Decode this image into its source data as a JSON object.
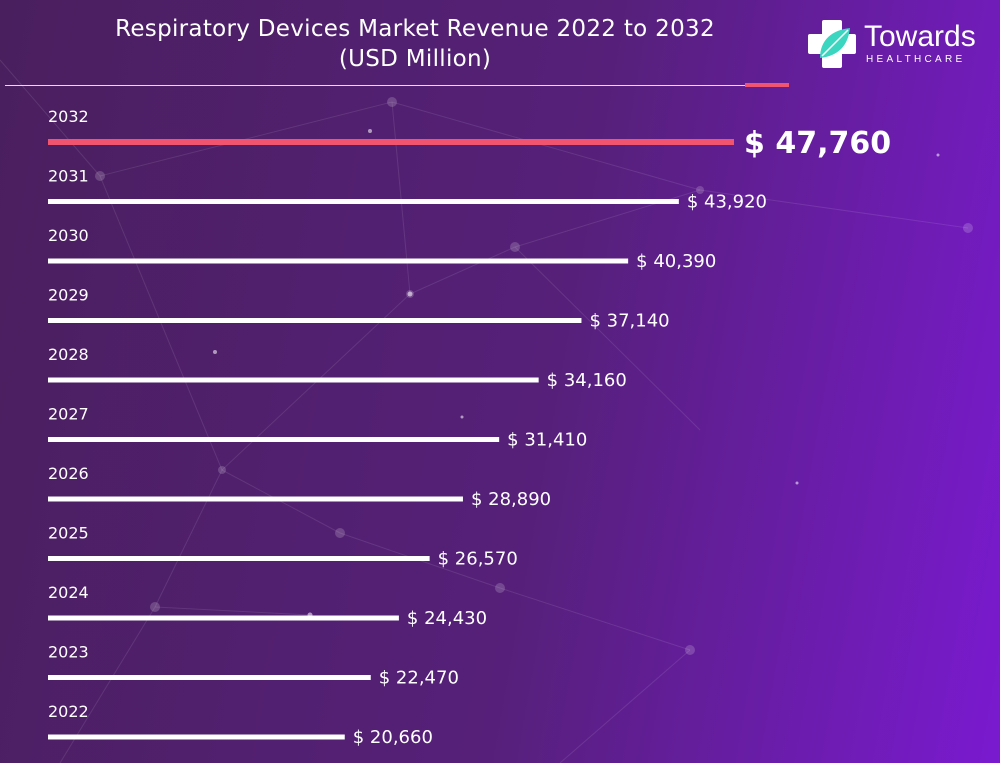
{
  "header": {
    "title_line1": "Respiratory Devices Market Revenue 2022 to 2032",
    "title_line2": "(USD Million)"
  },
  "logo": {
    "name": "Towards",
    "sub": "HEALTHCARE"
  },
  "colors": {
    "background_left": "#4a1f5e",
    "background_right": "#7a1ad0",
    "bar_default": "#ffffff",
    "bar_highlight": "#f0546e",
    "logo_leaf": "#3ad6c0"
  },
  "chart_data": {
    "type": "bar",
    "orientation": "horizontal",
    "categories": [
      "2032",
      "2031",
      "2030",
      "2029",
      "2028",
      "2027",
      "2026",
      "2025",
      "2024",
      "2023",
      "2022"
    ],
    "values": [
      47760,
      43920,
      40390,
      37140,
      34160,
      31410,
      28890,
      26570,
      24430,
      22470,
      20660
    ],
    "value_labels": [
      "$ 47,760",
      "$ 43,920",
      "$ 40,390",
      "$ 37,140",
      "$ 34,160",
      "$ 31,410",
      "$ 28,890",
      "$ 26,570",
      "$ 24,430",
      "$ 22,470",
      "$ 20,660"
    ],
    "highlight_category": "2032",
    "title": "Respiratory Devices Market Revenue 2022 to 2032 (USD Million)",
    "xlabel": "",
    "ylabel": "",
    "grid": false,
    "legend": "none"
  }
}
